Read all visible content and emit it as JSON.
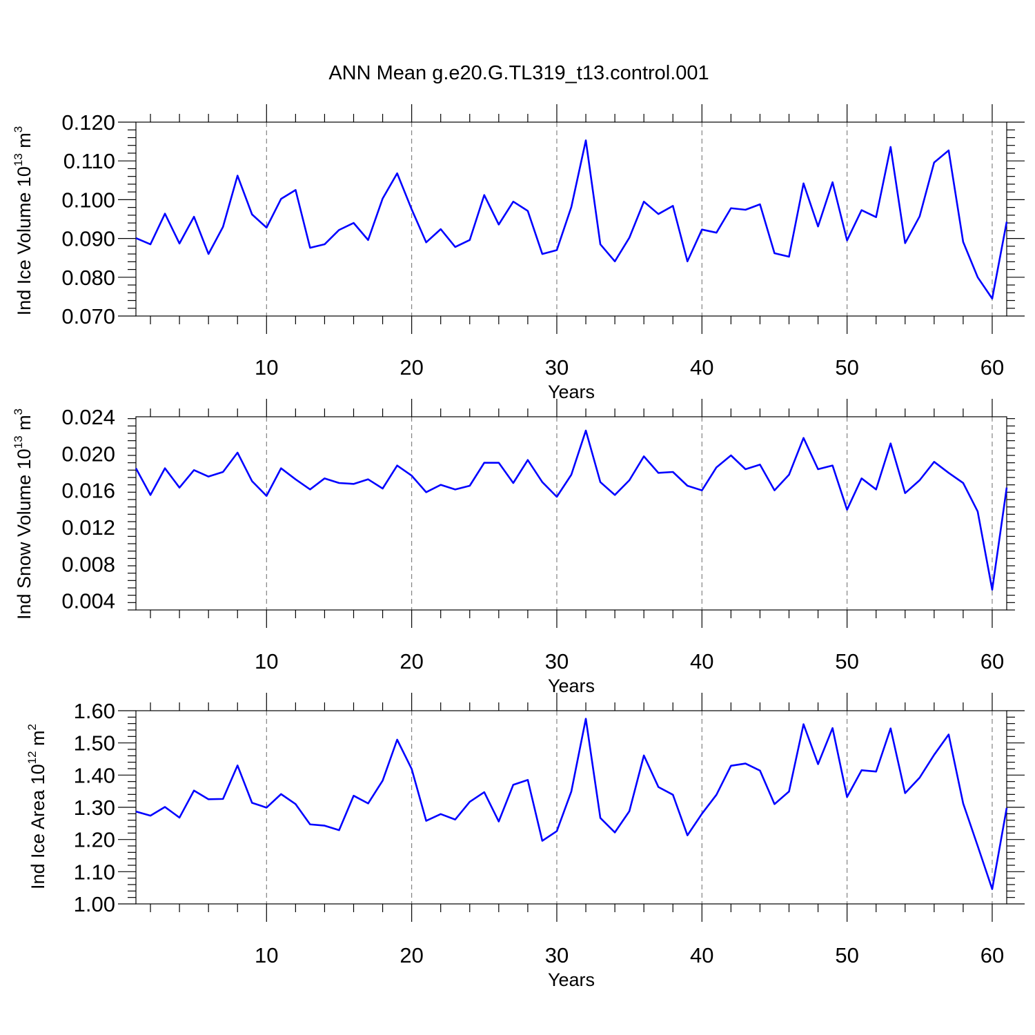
{
  "title": "ANN Mean g.e20.G.TL319_t13.control.001",
  "colors": {
    "series": "#0000ff",
    "grid": "#777777",
    "axis": "#000000"
  },
  "chart_data": [
    {
      "type": "line",
      "title": "",
      "xlabel": "Years",
      "ylabel": {
        "prefix": "Ind Ice Volume 10",
        "exponent": "13",
        "unit": "m",
        "unit_exponent": "3"
      },
      "xlim": [
        1,
        61
      ],
      "ylim": [
        0.07,
        0.12
      ],
      "x_ticks": [
        10,
        20,
        30,
        40,
        50,
        60
      ],
      "x_tick_labels": [
        "10",
        "20",
        "30",
        "40",
        "50",
        "60"
      ],
      "y_ticks": [
        0.07,
        0.08,
        0.09,
        0.1,
        0.11,
        0.12
      ],
      "y_tick_labels": [
        "0.070",
        "0.080",
        "0.090",
        "0.100",
        "0.110",
        "0.120"
      ],
      "grid": "vertical dashed at major x ticks",
      "series": [
        {
          "x": [
            1,
            2,
            3,
            4,
            5,
            6,
            7,
            8,
            9,
            10,
            11,
            12,
            13,
            14,
            15,
            16,
            17,
            18,
            19,
            20,
            21,
            22,
            23,
            24,
            25,
            26,
            27,
            28,
            29,
            30,
            31,
            32,
            33,
            34,
            35,
            36,
            37,
            38,
            39,
            40,
            41,
            42,
            43,
            44,
            45,
            46,
            47,
            48,
            49,
            50,
            51,
            52,
            53,
            54,
            55,
            56,
            57,
            58,
            59,
            60,
            61
          ],
          "values": [
            0.0901,
            0.0885,
            0.0964,
            0.0887,
            0.0956,
            0.086,
            0.093,
            0.1062,
            0.0962,
            0.0928,
            0.1002,
            0.1025,
            0.0876,
            0.0885,
            0.0922,
            0.094,
            0.0896,
            0.1003,
            0.1068,
            0.0975,
            0.089,
            0.0924,
            0.0878,
            0.0896,
            0.1012,
            0.0936,
            0.0995,
            0.0971,
            0.086,
            0.087,
            0.0981,
            0.1153,
            0.0885,
            0.0841,
            0.0902,
            0.0995,
            0.0963,
            0.0984,
            0.0841,
            0.0923,
            0.0915,
            0.0978,
            0.0974,
            0.0988,
            0.0862,
            0.0853,
            0.1042,
            0.0931,
            0.1045,
            0.0895,
            0.0973,
            0.0955,
            0.1136,
            0.0888,
            0.0957,
            0.1096,
            0.1127,
            0.0891,
            0.08,
            0.0745,
            0.0943
          ]
        }
      ]
    },
    {
      "type": "line",
      "title": "",
      "xlabel": "Years",
      "ylabel": {
        "prefix": "Ind Snow Volume 10",
        "exponent": "13",
        "unit": "m",
        "unit_exponent": "3"
      },
      "xlim": [
        1,
        61
      ],
      "ylim": [
        0.003,
        0.024
      ],
      "x_ticks": [
        10,
        20,
        30,
        40,
        50,
        60
      ],
      "x_tick_labels": [
        "10",
        "20",
        "30",
        "40",
        "50",
        "60"
      ],
      "y_ticks": [
        0.004,
        0.008,
        0.012,
        0.016,
        0.02,
        0.024
      ],
      "y_tick_labels": [
        "0.004",
        "0.008",
        "0.012",
        "0.016",
        "0.020",
        "0.024"
      ],
      "grid": "vertical dashed at major x ticks",
      "series": [
        {
          "x": [
            1,
            2,
            3,
            4,
            5,
            6,
            7,
            8,
            9,
            10,
            11,
            12,
            13,
            14,
            15,
            16,
            17,
            18,
            19,
            20,
            21,
            22,
            23,
            24,
            25,
            26,
            27,
            28,
            29,
            30,
            31,
            32,
            33,
            34,
            35,
            36,
            37,
            38,
            39,
            40,
            41,
            42,
            43,
            44,
            45,
            46,
            47,
            48,
            49,
            50,
            51,
            52,
            53,
            54,
            55,
            56,
            57,
            58,
            59,
            60,
            61
          ],
          "values": [
            0.0184,
            0.0155,
            0.0184,
            0.0163,
            0.0182,
            0.0175,
            0.018,
            0.0201,
            0.017,
            0.0154,
            0.0184,
            0.0172,
            0.0161,
            0.0173,
            0.0168,
            0.0167,
            0.0172,
            0.0162,
            0.0187,
            0.0176,
            0.0158,
            0.0166,
            0.0161,
            0.0165,
            0.019,
            0.019,
            0.0168,
            0.0193,
            0.0169,
            0.0153,
            0.0177,
            0.0225,
            0.0169,
            0.0155,
            0.0171,
            0.0197,
            0.0179,
            0.018,
            0.0165,
            0.016,
            0.0185,
            0.0198,
            0.0183,
            0.0188,
            0.016,
            0.0177,
            0.0217,
            0.0183,
            0.0187,
            0.0139,
            0.0173,
            0.0161,
            0.0211,
            0.0157,
            0.0171,
            0.0191,
            0.0179,
            0.0168,
            0.0137,
            0.0052,
            0.0163
          ]
        }
      ]
    },
    {
      "type": "line",
      "title": "",
      "xlabel": "Years",
      "ylabel": {
        "prefix": "Ind Ice Area 10",
        "exponent": "12",
        "unit": "m",
        "unit_exponent": "2"
      },
      "xlim": [
        1,
        61
      ],
      "ylim": [
        1.0,
        1.6
      ],
      "x_ticks": [
        10,
        20,
        30,
        40,
        50,
        60
      ],
      "x_tick_labels": [
        "10",
        "20",
        "30",
        "40",
        "50",
        "60"
      ],
      "y_ticks": [
        1.0,
        1.1,
        1.2,
        1.3,
        1.4,
        1.5,
        1.6
      ],
      "y_tick_labels": [
        "1.00",
        "1.10",
        "1.20",
        "1.30",
        "1.40",
        "1.50",
        "1.60"
      ],
      "grid": "vertical dashed at major x ticks",
      "series": [
        {
          "x": [
            1,
            2,
            3,
            4,
            5,
            6,
            7,
            8,
            9,
            10,
            11,
            12,
            13,
            14,
            15,
            16,
            17,
            18,
            19,
            20,
            21,
            22,
            23,
            24,
            25,
            26,
            27,
            28,
            29,
            30,
            31,
            32,
            33,
            34,
            35,
            36,
            37,
            38,
            39,
            40,
            41,
            42,
            43,
            44,
            45,
            46,
            47,
            48,
            49,
            50,
            51,
            52,
            53,
            54,
            55,
            56,
            57,
            58,
            59,
            60,
            61
          ],
          "values": [
            1.287,
            1.274,
            1.301,
            1.268,
            1.352,
            1.325,
            1.326,
            1.43,
            1.314,
            1.299,
            1.341,
            1.31,
            1.247,
            1.243,
            1.229,
            1.336,
            1.312,
            1.383,
            1.51,
            1.419,
            1.258,
            1.279,
            1.262,
            1.317,
            1.347,
            1.256,
            1.37,
            1.385,
            1.196,
            1.226,
            1.349,
            1.575,
            1.267,
            1.222,
            1.288,
            1.461,
            1.363,
            1.339,
            1.213,
            1.28,
            1.339,
            1.429,
            1.436,
            1.414,
            1.31,
            1.349,
            1.558,
            1.434,
            1.546,
            1.332,
            1.415,
            1.411,
            1.545,
            1.344,
            1.392,
            1.463,
            1.526,
            1.312,
            1.18,
            1.046,
            1.298
          ]
        }
      ]
    }
  ]
}
